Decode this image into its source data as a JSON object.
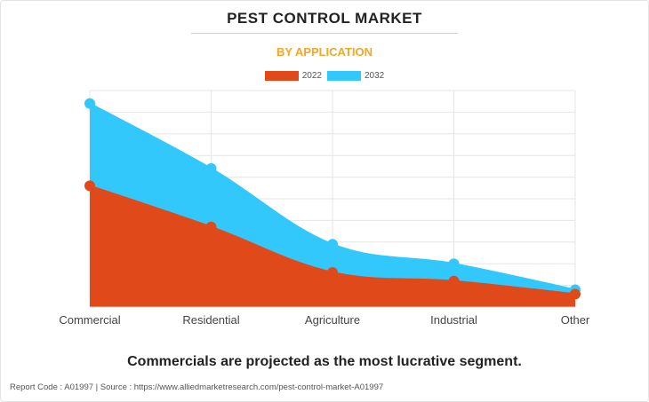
{
  "title": "PEST CONTROL MARKET",
  "subtitle": "BY APPLICATION",
  "caption": "Commercials are projected as the most lucrative segment.",
  "footer": "Report Code : A01997  |  Source : https://www.alliedmarketresearch.com/pest-control-market-A01997",
  "colors": {
    "series_2022": "#e04a1a",
    "series_2032": "#33c8fc",
    "subtitle": "#f5a623"
  },
  "chart_data": {
    "type": "area",
    "categories": [
      "Commercial",
      "Residential",
      "Agriculture",
      "Industrial",
      "Other"
    ],
    "series": [
      {
        "name": "2022",
        "values": [
          5.6,
          3.7,
          1.6,
          1.2,
          0.6
        ]
      },
      {
        "name": "2032",
        "values": [
          9.4,
          6.4,
          2.9,
          2.0,
          0.8
        ]
      }
    ],
    "ylim": [
      0,
      10
    ],
    "grid": true,
    "legend": "top-center",
    "ylabel": "",
    "xlabel": ""
  }
}
